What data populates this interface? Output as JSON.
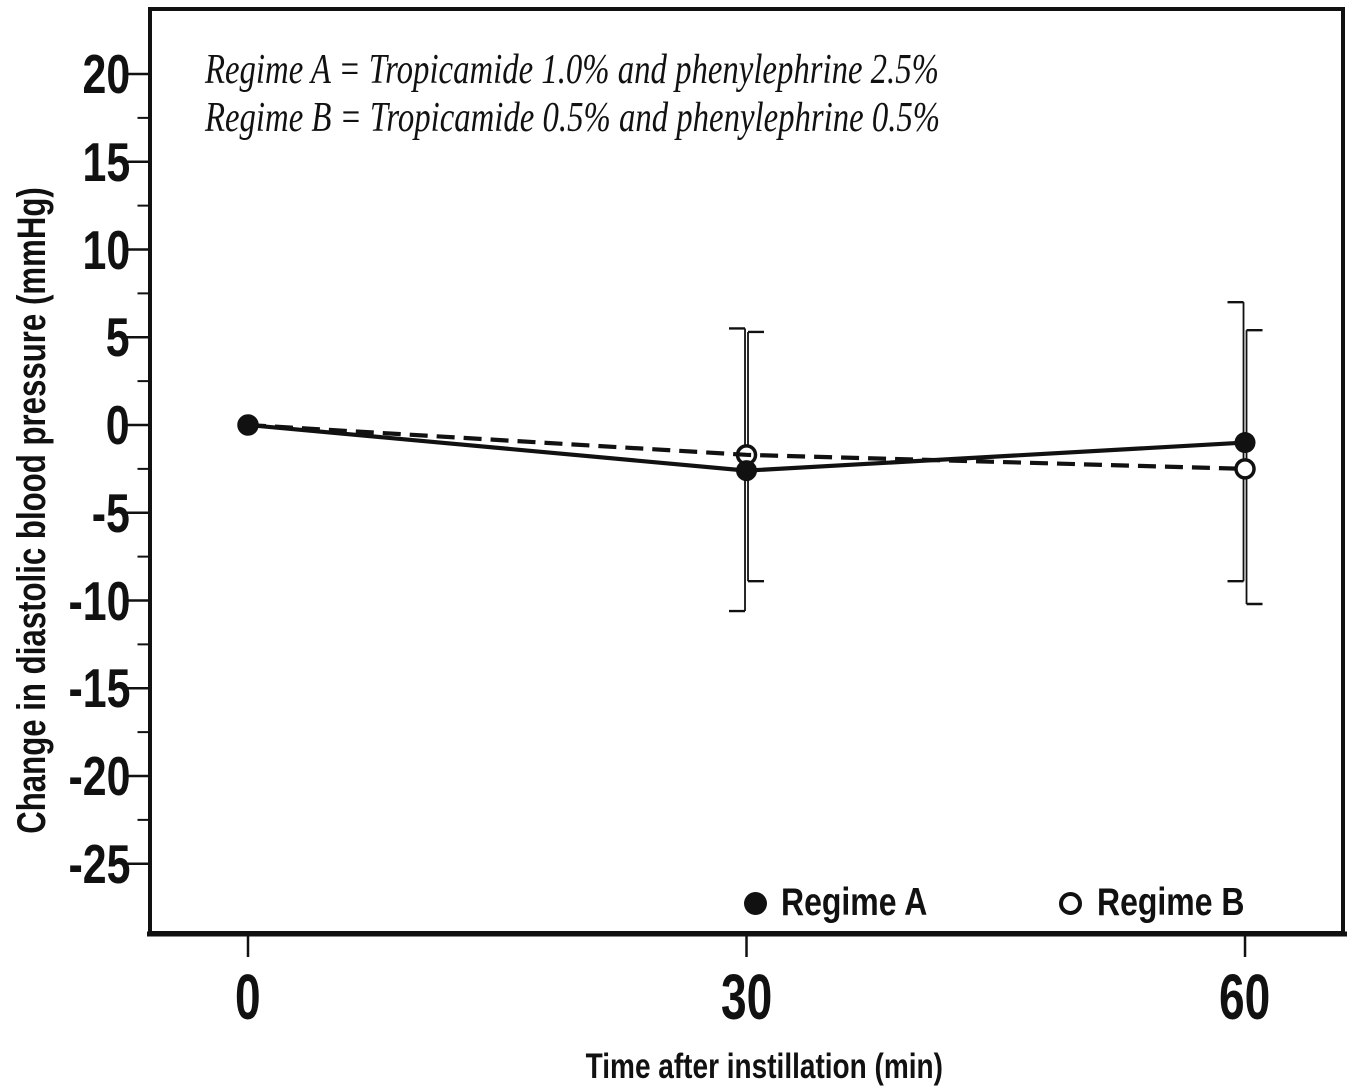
{
  "chart_data": {
    "type": "line",
    "title": "",
    "xlabel": "Time after instillation (min)",
    "ylabel": "Change in diastolic blood pressure (mmHg)",
    "x": [
      0,
      30,
      60
    ],
    "xticks": [
      "0",
      "30",
      "60"
    ],
    "yticks": [
      20,
      15,
      10,
      5,
      0,
      -5,
      -10,
      -15,
      -20,
      -25
    ],
    "yticks_minor": [
      17.5,
      12.5,
      7.5,
      2.5,
      -2.5,
      -7.5,
      -12.5,
      -17.5,
      -22.5
    ],
    "xlim": [
      -6,
      66
    ],
    "ylim": [
      -29,
      23.8
    ],
    "grid": false,
    "annotations": [
      "Regime A = Tropicamide 1.0% and phenylephrine 2.5%",
      "Regime B = Tropicamide 0.5% and phenylephrine 0.5%"
    ],
    "legend": {
      "position": "inside-bottom",
      "entries": [
        "Regime A",
        "Regime B"
      ]
    },
    "series": [
      {
        "name": "Regime A",
        "line_style": "solid",
        "marker": "filled-circle",
        "values": [
          0,
          -2.6,
          -1.0
        ],
        "error_high": [
          null,
          5.5,
          7.0
        ],
        "error_low": [
          null,
          -10.6,
          -8.9
        ],
        "error_cap_side": "left"
      },
      {
        "name": "Regime B",
        "line_style": "dashed",
        "marker": "open-circle",
        "values": [
          0,
          -1.7,
          -2.5
        ],
        "error_high": [
          null,
          5.3,
          5.4
        ],
        "error_low": [
          null,
          -8.9,
          -10.2
        ],
        "error_cap_side": "right"
      }
    ],
    "colors": {
      "foreground": "#111111",
      "background": "#ffffff"
    }
  }
}
